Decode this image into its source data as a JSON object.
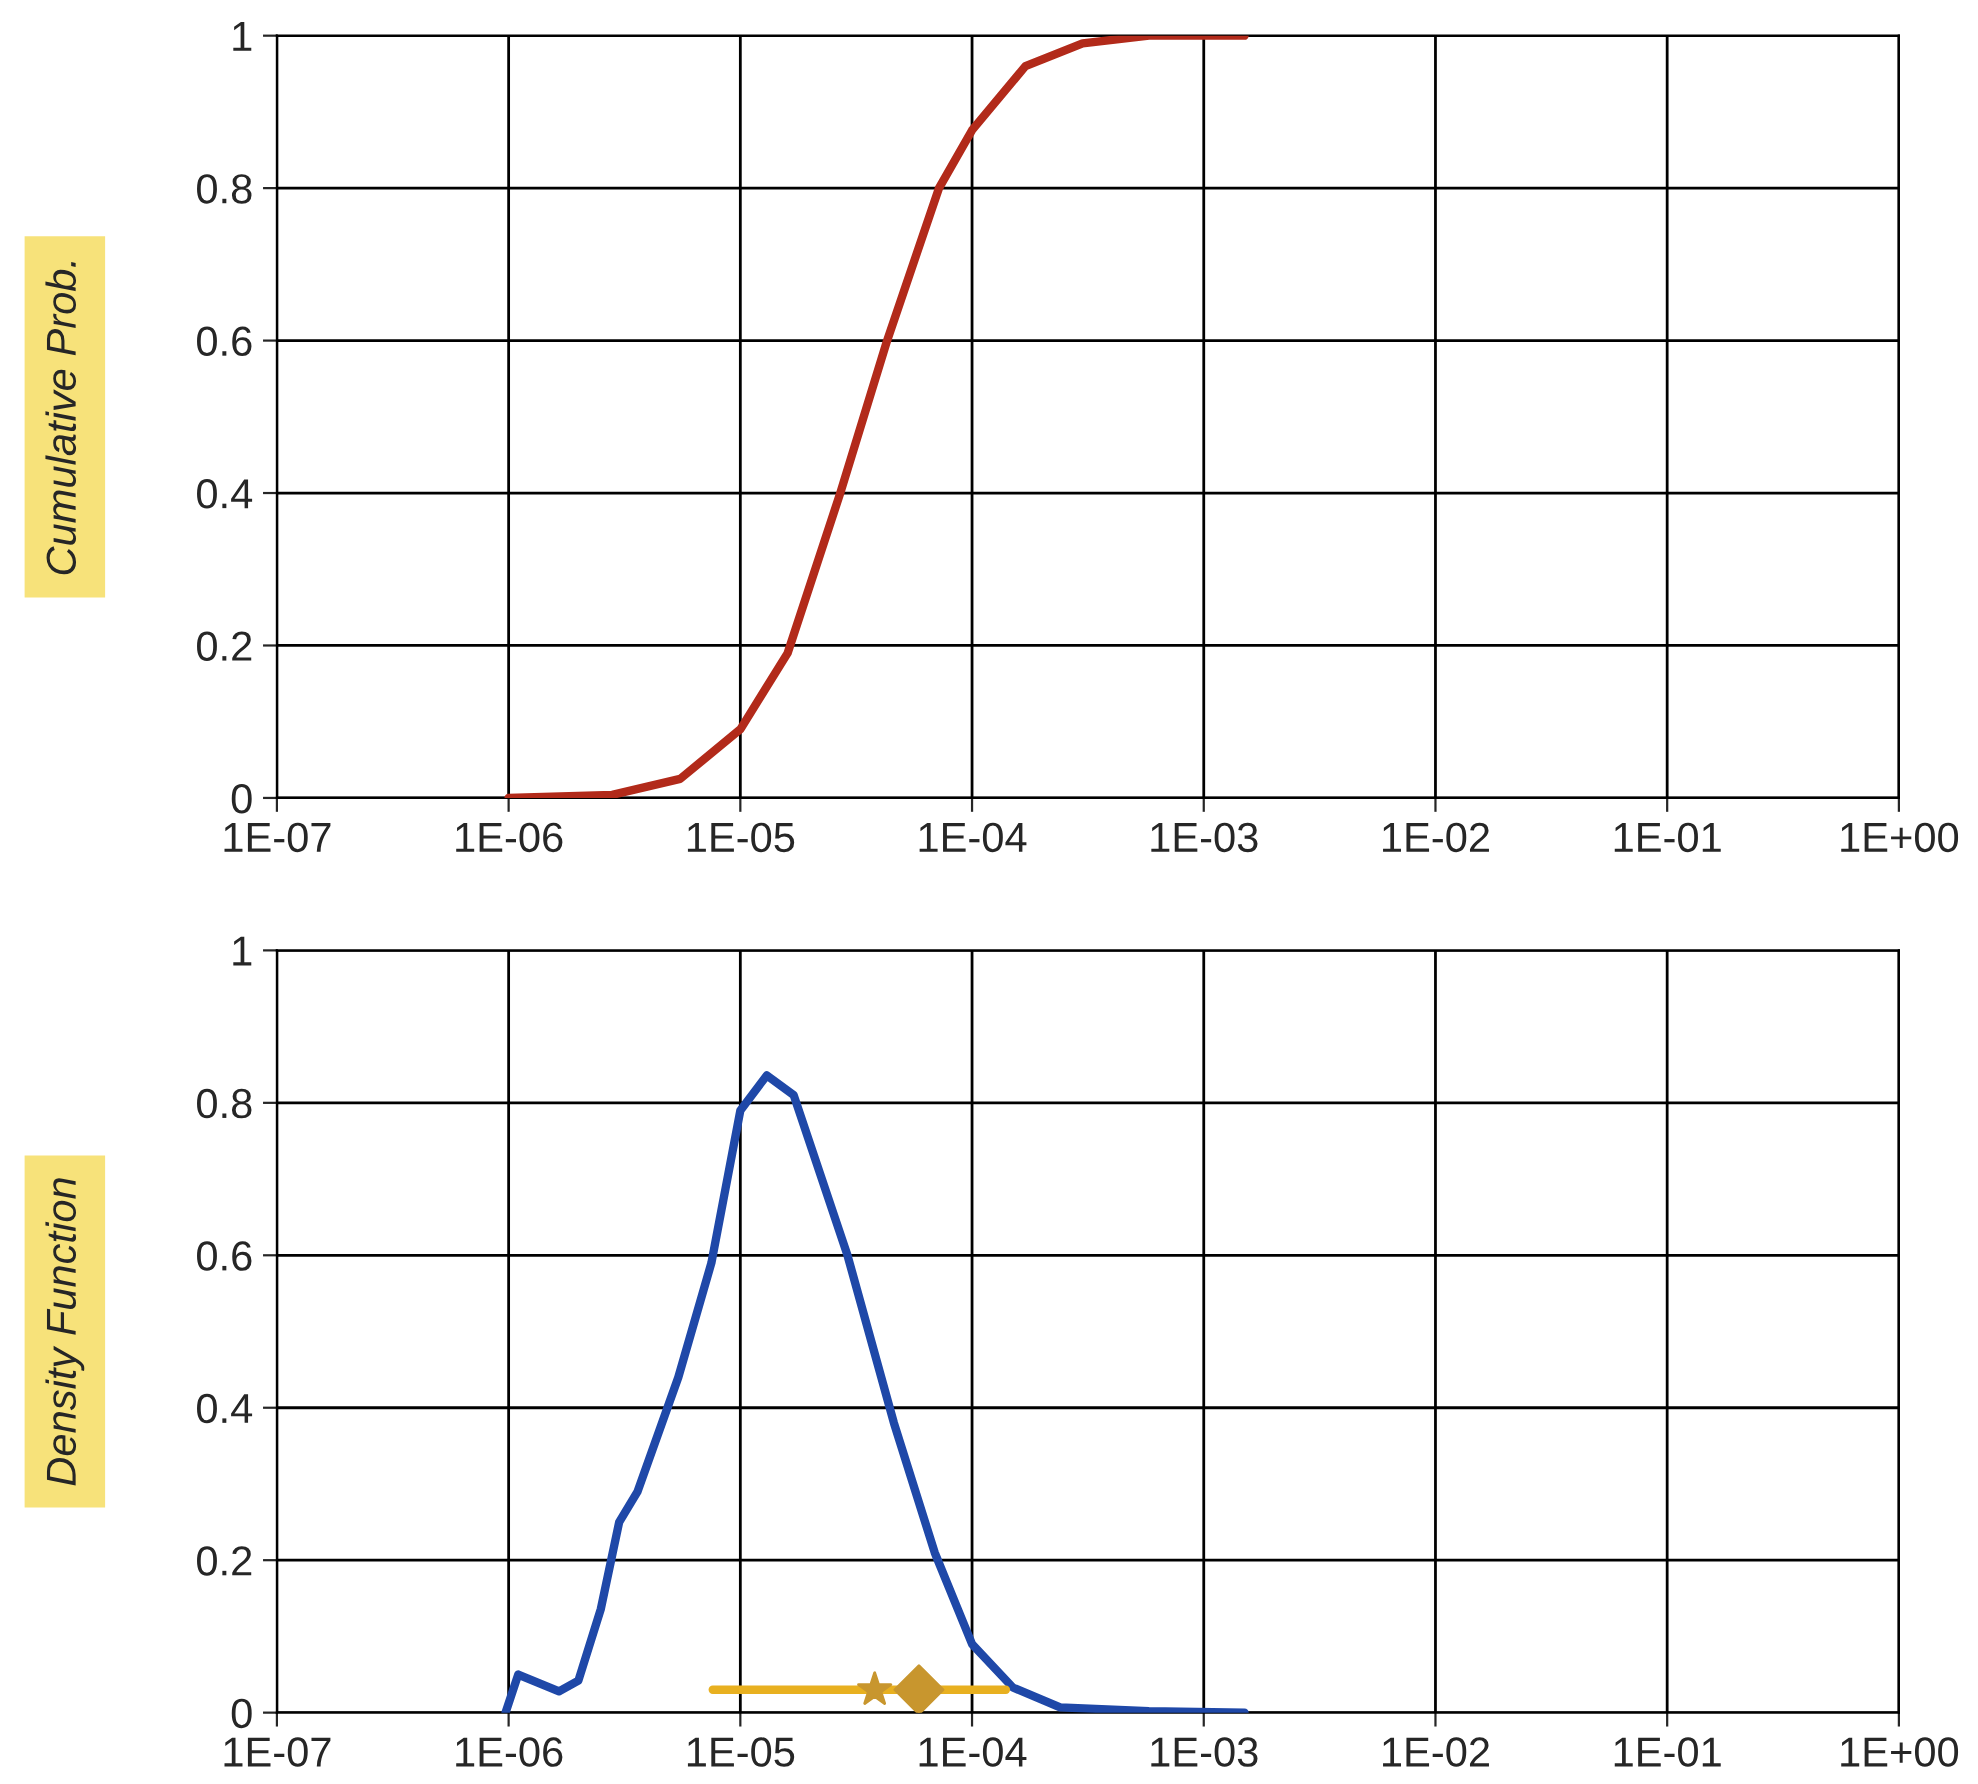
{
  "chart_data": [
    {
      "type": "line",
      "ylabel": "Cumulative Prob.",
      "log": "x",
      "grid": true,
      "xlim": [
        1e-07,
        1
      ],
      "ylim": [
        0,
        1
      ],
      "xticks": [
        {
          "value": 1e-07,
          "label": "1E-07"
        },
        {
          "value": 1e-06,
          "label": "1E-06"
        },
        {
          "value": 1e-05,
          "label": "1E-05"
        },
        {
          "value": 0.0001,
          "label": "1E-04"
        },
        {
          "value": 0.001,
          "label": "1E-03"
        },
        {
          "value": 0.01,
          "label": "1E-02"
        },
        {
          "value": 0.1,
          "label": "1E-01"
        },
        {
          "value": 1,
          "label": "1E+00"
        }
      ],
      "yticks": [
        0,
        0.2,
        0.4,
        0.6,
        0.8,
        1
      ],
      "series": [
        {
          "color": "#b22a1a",
          "x": [
            1e-06,
            2.8e-06,
            5.5e-06,
            1e-05,
            1.6e-05,
            2.7e-05,
            4.3e-05,
            7.2e-05,
            0.0001,
            0.00017,
            0.0003,
            0.00058,
            0.0015
          ],
          "values": [
            0,
            0.004,
            0.025,
            0.09,
            0.19,
            0.4,
            0.6,
            0.8,
            0.876,
            0.96,
            0.99,
            1,
            1
          ]
        }
      ]
    },
    {
      "type": "line",
      "ylabel": "Density Function",
      "log": "x",
      "grid": true,
      "xlim": [
        1e-07,
        1
      ],
      "ylim": [
        0,
        1
      ],
      "xticks": [
        {
          "value": 1e-07,
          "label": "1E-07"
        },
        {
          "value": 1e-06,
          "label": "1E-06"
        },
        {
          "value": 1e-05,
          "label": "1E-05"
        },
        {
          "value": 0.0001,
          "label": "1E-04"
        },
        {
          "value": 0.001,
          "label": "1E-03"
        },
        {
          "value": 0.01,
          "label": "1E-02"
        },
        {
          "value": 0.1,
          "label": "1E-01"
        },
        {
          "value": 1,
          "label": "1E+00"
        }
      ],
      "yticks": [
        0,
        0.2,
        0.4,
        0.6,
        0.8,
        1
      ],
      "series": [
        {
          "color": "#1f48a8",
          "x": [
            9.7e-07,
            1.1e-06,
            1.65e-06,
            2e-06,
            2.5e-06,
            3e-06,
            3.6e-06,
            5.4e-06,
            7.5e-06,
            1e-05,
            1.3e-05,
            1.7e-05,
            2.9e-05,
            4.6e-05,
            6.9e-05,
            0.0001,
            0.00015,
            0.00024,
            0.00058,
            0.0015
          ],
          "values": [
            0,
            0.05,
            0.028,
            0.042,
            0.136,
            0.25,
            0.29,
            0.44,
            0.59,
            0.79,
            0.836,
            0.81,
            0.6,
            0.38,
            0.21,
            0.09,
            0.033,
            0.007,
            0.002,
            0
          ]
        },
        {
          "color": "#e8b020",
          "x": [
            7.6e-06,
            0.00014
          ],
          "values": [
            0.03,
            0.03
          ]
        },
        {
          "type": "scatter",
          "marker": "star",
          "color": "#c8962e",
          "x": [
            3.8e-05
          ],
          "values": [
            0.03
          ]
        },
        {
          "type": "scatter",
          "marker": "diamond",
          "color": "#c8962e",
          "x": [
            5.9e-05
          ],
          "values": [
            0.03
          ]
        }
      ]
    }
  ]
}
